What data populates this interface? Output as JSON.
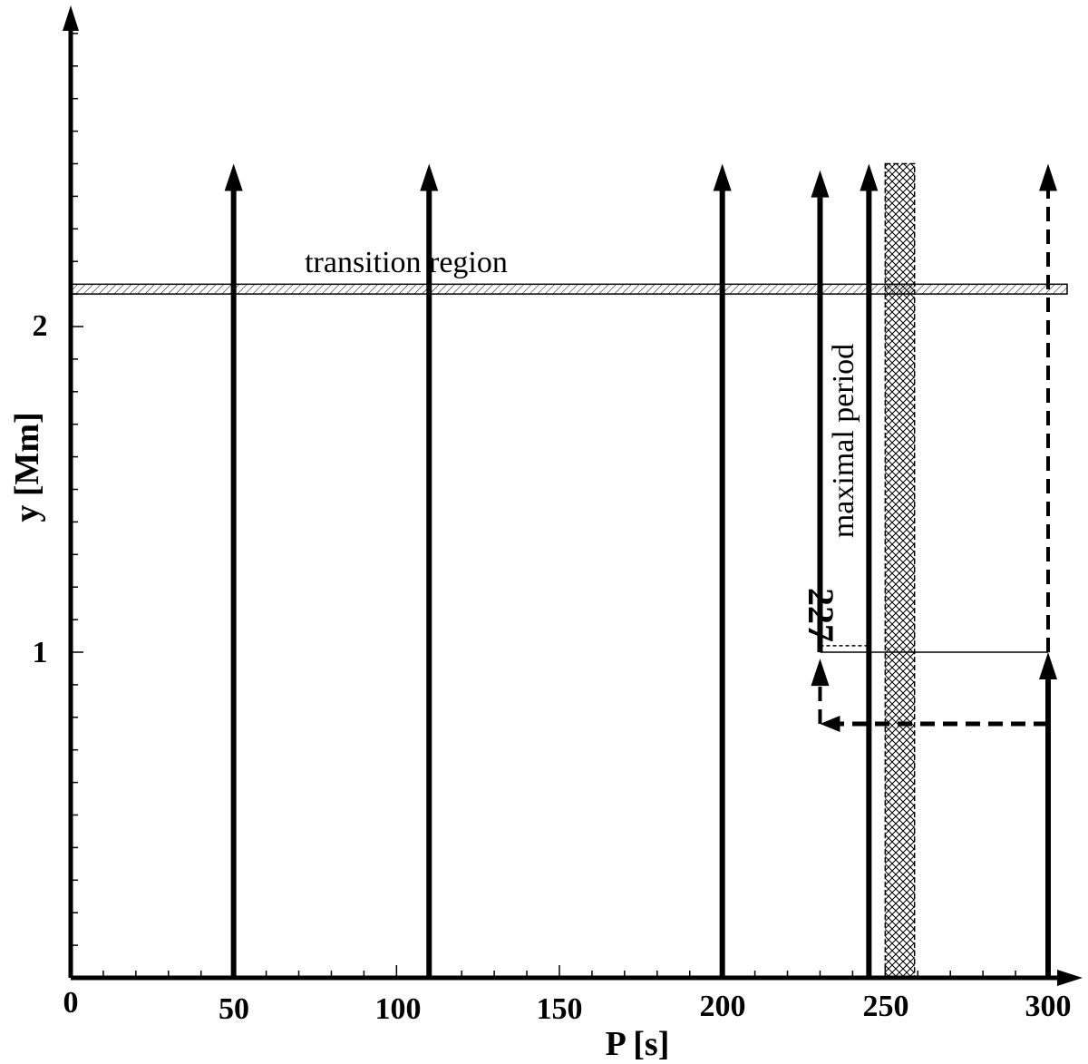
{
  "chart_data": {
    "type": "line",
    "xlabel": "P [s]",
    "ylabel": "y [Mm]",
    "xlim": [
      0,
      300
    ],
    "ylim": [
      0,
      3.0
    ],
    "x_ticks": [
      "0",
      "50",
      "100",
      "150",
      "200",
      "250",
      "300"
    ],
    "y_ticks": [
      "1",
      "2"
    ],
    "transition_region": {
      "label": "transition region",
      "y_min": 2.1,
      "y_max": 2.13
    },
    "maximal_period_band": {
      "label": "maximal period",
      "x_min": 250,
      "x_max": 259,
      "y_max": 2.5
    },
    "annotations": [
      {
        "text": "227",
        "x": 227,
        "y": 1.0
      }
    ],
    "arrows": [
      {
        "x": 50,
        "y_start": 0,
        "y_end": 2.5,
        "style": "solid"
      },
      {
        "x": 110,
        "y_start": 0,
        "y_end": 2.5,
        "style": "solid"
      },
      {
        "x": 200,
        "y_start": 0,
        "y_end": 2.5,
        "style": "solid"
      },
      {
        "x": 245,
        "y_start": 0,
        "y_end": 2.5,
        "style": "solid"
      },
      {
        "x": 230,
        "y_start": 1.0,
        "y_end": 2.48,
        "style": "solid"
      },
      {
        "x": 300,
        "y_start": 0,
        "y_end": 1.0,
        "style": "solid"
      },
      {
        "x": 300,
        "y_start": 1.0,
        "y_end": 2.5,
        "style": "dashed"
      },
      {
        "x": 300,
        "y_start": 0.78,
        "x_end": 230,
        "y_end": 0.78,
        "style": "dashed",
        "direction": "horizontal"
      },
      {
        "x": 230,
        "y_start": 0.78,
        "y_end": 0.98,
        "style": "dashed"
      }
    ],
    "connectors": [
      {
        "x1": 230,
        "x2": 300,
        "y": 1.0,
        "style": "thin"
      },
      {
        "x1": 230,
        "x2": 245,
        "y": 1.02,
        "style": "dotted"
      }
    ]
  }
}
